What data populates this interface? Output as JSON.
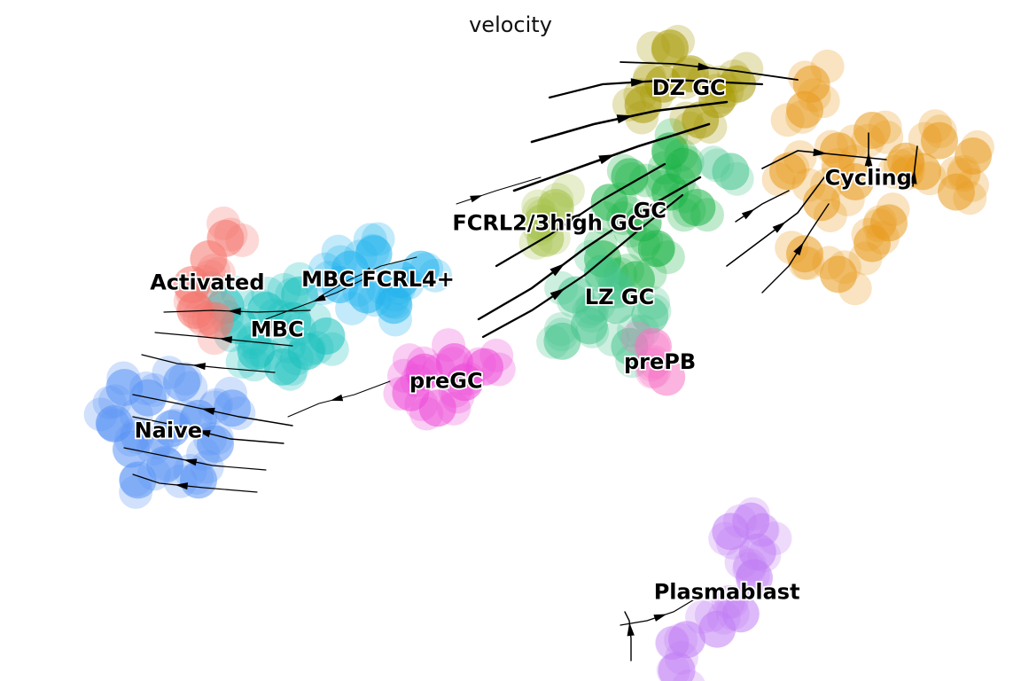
{
  "chart_data": {
    "type": "scatter",
    "subtype": "embedding with velocity streamlines",
    "title": "velocity",
    "xlabel": "",
    "ylabel": "",
    "axes_visible": false,
    "grid": false,
    "legend": "on data",
    "clusters": [
      {
        "name": "Naive",
        "color": "#5b95f5",
        "x": [
          0.5,
          2.2,
          1,
          2,
          3,
          1.5,
          3.5,
          0.8,
          2.5,
          4,
          1.2,
          3
        ],
        "y": [
          4.3,
          4.2,
          3.8,
          3.5,
          4.4,
          4.8,
          3.9,
          5,
          5.1,
          4.6,
          3.2,
          3.2
        ]
      },
      {
        "name": "MBC",
        "color": "#1cc1bd",
        "x": [
          4.2,
          5,
          5.8,
          6.2,
          4.7,
          5.5,
          6.8,
          3.8,
          6
        ],
        "y": [
          6.2,
          6.5,
          6.3,
          5.7,
          5.7,
          5.4,
          6,
          6.6,
          6.8
        ]
      },
      {
        "name": "MBC FCRL4+",
        "color": "#24b4ee",
        "x": [
          7.5,
          8.2,
          9,
          8,
          7.2,
          8.8,
          9.6
        ],
        "y": [
          7.3,
          7.6,
          7.1,
          6.8,
          7,
          6.6,
          7.3
        ]
      },
      {
        "name": "Activated",
        "color": "#f5776e",
        "x": [
          2.8,
          3.3,
          3.8,
          2.9,
          3.5
        ],
        "y": [
          7,
          7.5,
          7.9,
          6.5,
          6.3
        ]
      },
      {
        "name": "preGC",
        "color": "#ee4bd8",
        "x": [
          9.3,
          10.1,
          10.9,
          11.5,
          9.7,
          10.6
        ],
        "y": [
          4.9,
          4.6,
          5.1,
          5.4,
          5.3,
          5.5
        ]
      },
      {
        "name": "FCRL2/3high GC",
        "color": "#a5c34a",
        "x": [
          13.2,
          13.6,
          13.3
        ],
        "y": [
          8.2,
          8.5,
          7.9
        ]
      },
      {
        "name": "GC",
        "color": "#1db547",
        "x": [
          15.2,
          16.2,
          17,
          17.8,
          15.8,
          16.6,
          17.4,
          15,
          16,
          17
        ],
        "y": [
          8.6,
          8.2,
          8.8,
          8.5,
          9.1,
          7.7,
          9.3,
          7.5,
          7.1,
          9.6
        ]
      },
      {
        "name": "LZ GC",
        "color": "#48c68e",
        "x": [
          13.8,
          14.6,
          15.4,
          14.2,
          15,
          15.8,
          16.4,
          18.8
        ],
        "y": [
          5.9,
          6.2,
          6.6,
          6.8,
          7.2,
          5.8,
          6.4,
          9.2
        ]
      },
      {
        "name": "prePB",
        "color": "#f774c4",
        "x": [
          16.5,
          16.9
        ],
        "y": [
          5.8,
          5.2
        ]
      },
      {
        "name": "DZ GC",
        "color": "#a89a06",
        "x": [
          16.8,
          17.6,
          18.4,
          16.2,
          17.9,
          19,
          17
        ],
        "y": [
          10.9,
          11.1,
          10.6,
          10.5,
          10.2,
          10.9,
          11.6
        ]
      },
      {
        "name": "Cycling",
        "color": "#e89a1e",
        "x": [
          21,
          22,
          23,
          24,
          25,
          26,
          20.5,
          21.5,
          22.5,
          23.5,
          24.5,
          25.5,
          21,
          22,
          23,
          21.2
        ],
        "y": [
          10.4,
          9.6,
          10,
          9.4,
          9.8,
          9.5,
          9.2,
          8.6,
          9,
          8.2,
          9.2,
          8.8,
          7.6,
          7.2,
          7.8,
          10.9
        ]
      },
      {
        "name": "Plasmablast",
        "color": "#c17ff5",
        "x": [
          18.8,
          19.4,
          19.6,
          19.5,
          19.1,
          18.4,
          17.5,
          17.2
        ],
        "y": [
          2.2,
          2.4,
          1.8,
          1.3,
          0.6,
          0.3,
          0.1,
          -0.5
        ]
      }
    ]
  }
}
